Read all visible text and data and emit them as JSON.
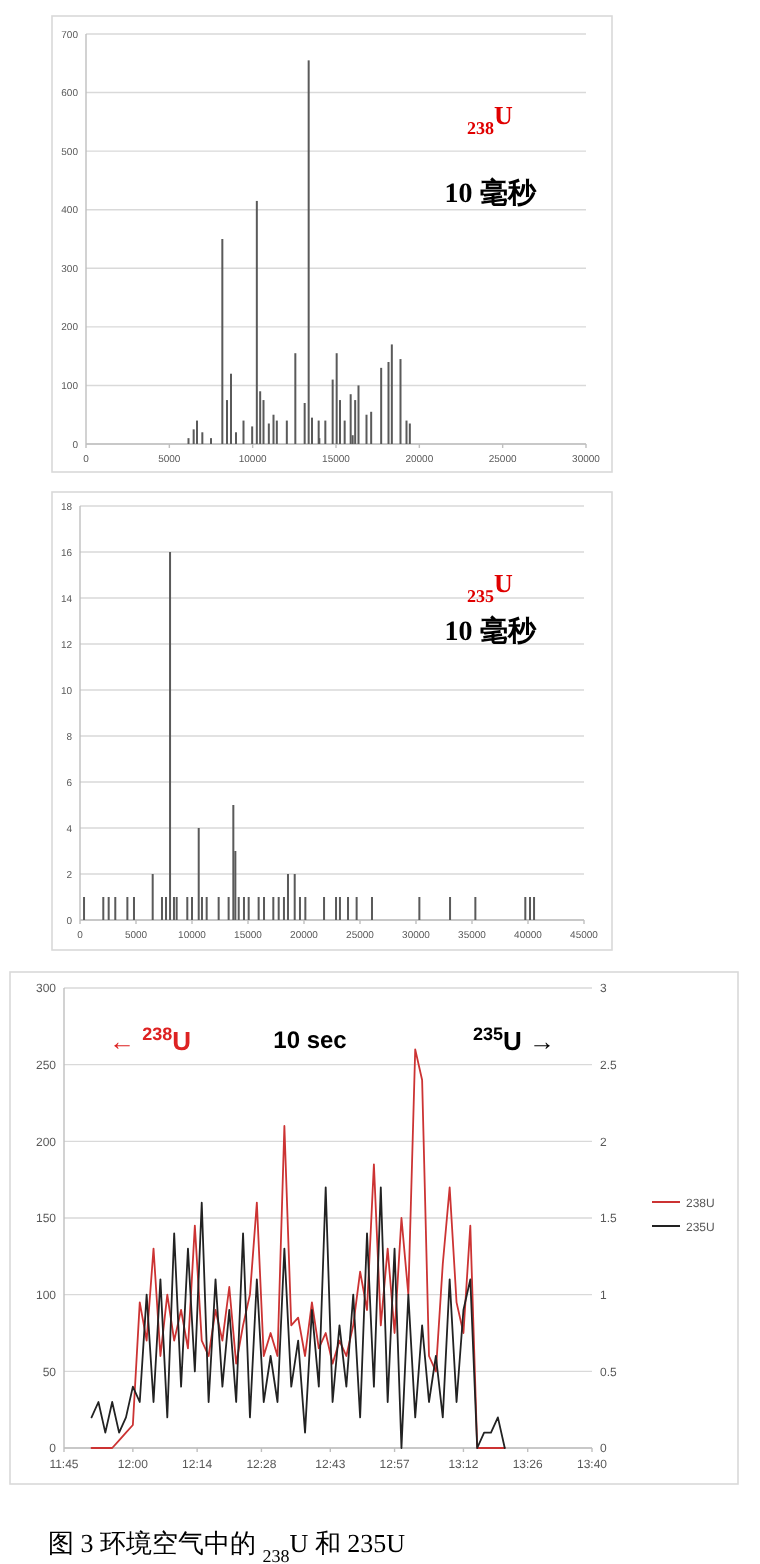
{
  "chart_data": [
    {
      "type": "bar",
      "color": "#5a5a5a",
      "xlim": [
        0,
        30000
      ],
      "xticks": [
        0,
        5000,
        10000,
        15000,
        20000,
        25000,
        30000
      ],
      "ylim": [
        0,
        700
      ],
      "yticks": [
        0,
        100,
        200,
        300,
        400,
        500,
        600,
        700
      ],
      "grid": "y",
      "annotations": [
        "$_{238}$U",
        "10 毫秒"
      ],
      "x": [
        6150,
        6460,
        6660,
        6980,
        7500,
        8180,
        8460,
        8700,
        9000,
        9450,
        9970,
        10250,
        10450,
        10650,
        10970,
        11250,
        11450,
        12050,
        12560,
        13120,
        13360,
        13560,
        13960,
        14000,
        14360,
        14800,
        15040,
        15240,
        15520,
        15880,
        16000,
        16150,
        16350,
        16830,
        17110,
        17710,
        18150,
        18350,
        18870,
        19230,
        19430
      ],
      "values": [
        10,
        25,
        40,
        20,
        10,
        350,
        75,
        120,
        20,
        40,
        30,
        415,
        90,
        75,
        35,
        50,
        40,
        40,
        155,
        70,
        655,
        45,
        40,
        10,
        40,
        110,
        155,
        75,
        40,
        85,
        15,
        75,
        100,
        50,
        55,
        130,
        140,
        170,
        145,
        40,
        35
      ]
    },
    {
      "type": "bar",
      "color": "#5a5a5a",
      "xlim": [
        0,
        45000
      ],
      "xticks": [
        0,
        5000,
        10000,
        15000,
        20000,
        25000,
        30000,
        35000,
        40000,
        45000
      ],
      "ylim": [
        0,
        18
      ],
      "yticks": [
        0,
        2,
        4,
        6,
        8,
        10,
        12,
        14,
        16,
        18
      ],
      "grid": "y",
      "annotations": [
        "$_{235}$U",
        "10 毫秒"
      ],
      "x": [
        360,
        2080,
        2560,
        3150,
        4230,
        4820,
        6490,
        7320,
        7680,
        8040,
        8390,
        8630,
        9580,
        10000,
        10600,
        10890,
        11310,
        12380,
        13270,
        13690,
        13870,
        14170,
        14640,
        15060,
        15950,
        16430,
        17260,
        17740,
        18210,
        18570,
        19170,
        19640,
        20120,
        21790,
        22860,
        23210,
        23930,
        24700,
        26070,
        30300,
        33040,
        35300,
        39760,
        40180,
        40540
      ],
      "values": [
        1,
        1,
        1,
        1,
        1,
        1,
        2,
        1,
        1,
        16,
        1,
        1,
        1,
        1,
        4,
        1,
        1,
        1,
        1,
        5,
        3,
        1,
        1,
        1,
        1,
        1,
        1,
        1,
        1,
        2,
        2,
        1,
        1,
        1,
        1,
        1,
        1,
        1,
        1,
        1,
        1,
        1,
        1,
        1,
        1
      ]
    },
    {
      "type": "line",
      "title": "10 sec",
      "annotations": [
        "← $^{238}$U",
        "$^{235}$U →",
        "图 3 环境空气中的 $_{238}$U 和 235U"
      ],
      "grid": "y",
      "legend": "right",
      "xlim": [
        11.75,
        13.6667
      ],
      "xticks": [
        {
          "value": 11.75,
          "label": "11:45"
        },
        {
          "value": 12.0,
          "label": "12:00"
        },
        {
          "value": 12.2333,
          "label": "12:14"
        },
        {
          "value": 12.4667,
          "label": "12:28"
        },
        {
          "value": 12.7167,
          "label": "12:43"
        },
        {
          "value": 12.95,
          "label": "12:57"
        },
        {
          "value": 13.2,
          "label": "13:12"
        },
        {
          "value": 13.4333,
          "label": "13:26"
        },
        {
          "value": 13.6667,
          "label": "13:40"
        }
      ],
      "ylim": [
        0,
        300
      ],
      "yticks": [
        0,
        50,
        100,
        150,
        200,
        250,
        300
      ],
      "y2lim": [
        0,
        3
      ],
      "y2ticks": [
        0,
        0.5,
        1,
        1.5,
        2,
        2.5,
        3
      ],
      "x": [
        11.85,
        11.875,
        11.9,
        11.925,
        11.95,
        11.975,
        12.0,
        12.025,
        12.05,
        12.075,
        12.1,
        12.125,
        12.15,
        12.175,
        12.2,
        12.225,
        12.25,
        12.275,
        12.3,
        12.325,
        12.35,
        12.375,
        12.4,
        12.425,
        12.45,
        12.475,
        12.5,
        12.525,
        12.55,
        12.575,
        12.6,
        12.625,
        12.65,
        12.675,
        12.7,
        12.725,
        12.75,
        12.775,
        12.8,
        12.825,
        12.85,
        12.875,
        12.9,
        12.925,
        12.95,
        12.975,
        13.0,
        13.025,
        13.05,
        13.075,
        13.1,
        13.125,
        13.15,
        13.175,
        13.2,
        13.225,
        13.25,
        13.275,
        13.3,
        13.325,
        13.35
      ],
      "series": [
        {
          "name": "238U",
          "color": "#cc3333",
          "values": [
            0,
            0,
            0,
            0,
            5,
            10,
            15,
            95,
            70,
            130,
            60,
            100,
            70,
            90,
            65,
            145,
            70,
            60,
            90,
            70,
            105,
            55,
            80,
            100,
            160,
            60,
            75,
            60,
            210,
            80,
            85,
            60,
            95,
            65,
            75,
            55,
            70,
            60,
            80,
            115,
            90,
            185,
            80,
            130,
            75,
            150,
            100,
            260,
            240,
            60,
            50,
            120,
            170,
            95,
            75,
            145,
            0,
            0,
            0,
            0,
            0
          ]
        },
        {
          "name": "235U",
          "color": "#222222",
          "axis": "y2",
          "values": [
            0.2,
            0.3,
            0.1,
            0.3,
            0.1,
            0.2,
            0.4,
            0.3,
            1.0,
            0.3,
            1.1,
            0.2,
            1.4,
            0.4,
            1.3,
            0.5,
            1.6,
            0.3,
            1.1,
            0.4,
            0.9,
            0.3,
            1.4,
            0.2,
            1.1,
            0.3,
            0.6,
            0.3,
            1.3,
            0.4,
            0.7,
            0.1,
            0.9,
            0.4,
            1.7,
            0.3,
            0.8,
            0.4,
            1.0,
            0.2,
            1.4,
            0.4,
            1.7,
            0.3,
            1.3,
            0.0,
            1.0,
            0.2,
            0.8,
            0.3,
            0.6,
            0.2,
            1.1,
            0.3,
            0.9,
            1.1,
            0.0,
            0.1,
            0.1,
            0.2,
            0.0
          ]
        }
      ]
    }
  ]
}
